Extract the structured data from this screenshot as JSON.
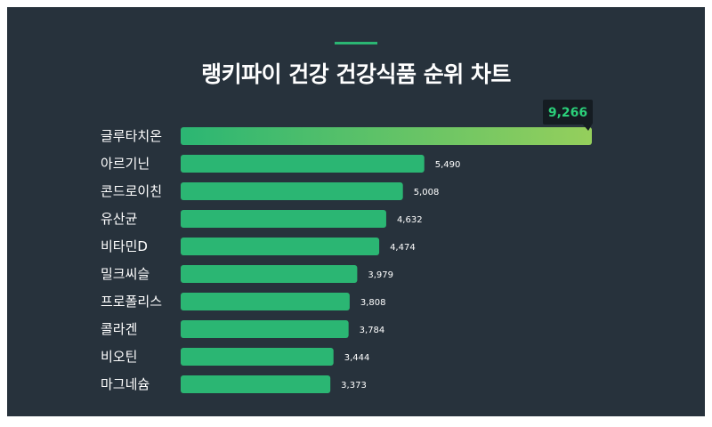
{
  "title": "랭키파이 건강 건강식품 순위 차트",
  "colors": {
    "background": "#27323c",
    "accent": "#2bb673",
    "bar": "#2bb673",
    "bar_highlight_end": "#95cf5c",
    "callout_bg": "#151c22"
  },
  "chart_data": {
    "type": "bar",
    "orientation": "horizontal",
    "title": "랭키파이 건강 건강식품 순위 차트",
    "categories": [
      "글루타치온",
      "아르기닌",
      "콘드로이친",
      "유산균",
      "비타민D",
      "밀크씨슬",
      "프로폴리스",
      "콜라겐",
      "비오틴",
      "마그네슘"
    ],
    "values": [
      9266,
      5490,
      5008,
      4632,
      4474,
      3979,
      3808,
      3784,
      3444,
      3373
    ],
    "value_labels": [
      "9,266",
      "5,490",
      "5,008",
      "4,632",
      "4,474",
      "3,979",
      "3,808",
      "3,784",
      "3,444",
      "3,373"
    ],
    "xlim": [
      0,
      9266
    ],
    "grid": false,
    "legend": "none"
  }
}
